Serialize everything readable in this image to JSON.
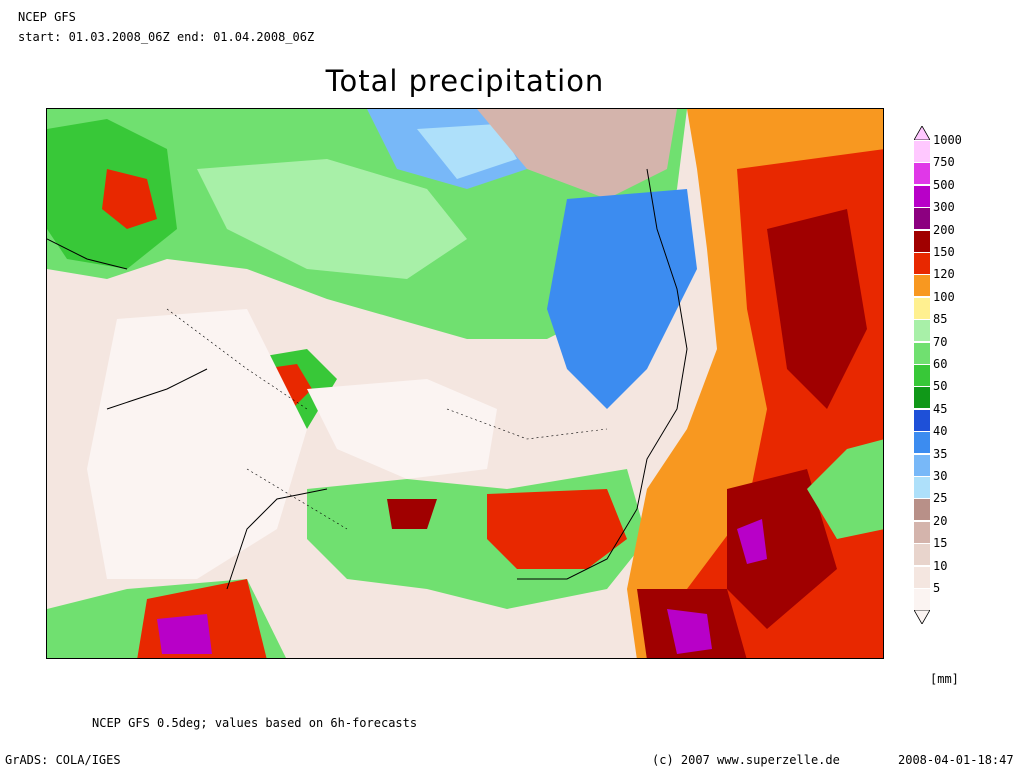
{
  "header": {
    "line1": "NCEP GFS",
    "line2": "start: 01.03.2008_06Z end: 01.04.2008_06Z"
  },
  "title": "Total precipitation",
  "legend": {
    "unit": "[mm]",
    "levels": [
      {
        "label": "1000",
        "color": "#ffc8ff"
      },
      {
        "label": "750",
        "color": "#e038e8"
      },
      {
        "label": "500",
        "color": "#b800c8"
      },
      {
        "label": "300",
        "color": "#8c0080"
      },
      {
        "label": "200",
        "color": "#a00000"
      },
      {
        "label": "150",
        "color": "#e82800"
      },
      {
        "label": "120",
        "color": "#f89820"
      },
      {
        "label": "100",
        "color": "#fff090"
      },
      {
        "label": "85",
        "color": "#a8f0a8"
      },
      {
        "label": "70",
        "color": "#70e070"
      },
      {
        "label": "60",
        "color": "#38c838"
      },
      {
        "label": "50",
        "color": "#109818"
      },
      {
        "label": "45",
        "color": "#1e50d8"
      },
      {
        "label": "40",
        "color": "#3c8cf0"
      },
      {
        "label": "35",
        "color": "#78b8f8"
      },
      {
        "label": "30",
        "color": "#aee0fa"
      },
      {
        "label": "25",
        "color": "#b89088"
      },
      {
        "label": "20",
        "color": "#d4b4ac"
      },
      {
        "label": "15",
        "color": "#e8d4cc"
      },
      {
        "label": "10",
        "color": "#f4e6e0"
      },
      {
        "label": "5",
        "color": "#fbf4f2"
      }
    ]
  },
  "footer": {
    "note": "NCEP GFS 0.5deg; values based on 6h-forecasts",
    "software": "GrADS: COLA/IGES",
    "copyright": "(c) 2007 www.superzelle.de",
    "timestamp": "2008-04-01-18:47"
  }
}
